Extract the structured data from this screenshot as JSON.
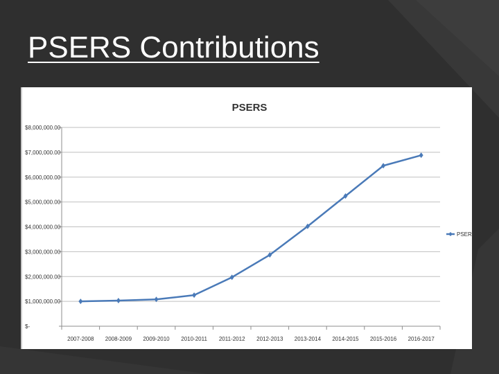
{
  "slide": {
    "title": "PSERS Contributions"
  },
  "colors": {
    "background": "#2f2f2f",
    "series": "#4a7ab8",
    "gridline": "#bfbfbf"
  },
  "chart_data": {
    "type": "line",
    "title": "PSERS",
    "xlabel": "",
    "ylabel": "",
    "categories": [
      "2007-2008",
      "2008-2009",
      "2009-2010",
      "2010-2011",
      "2011-2012",
      "2012-2013",
      "2013-2014",
      "2014-2015",
      "2015-2016",
      "2016-2017"
    ],
    "series": [
      {
        "name": "PSERS",
        "values": [
          1000000,
          1030000,
          1080000,
          1250000,
          1970000,
          2870000,
          4020000,
          5240000,
          6460000,
          6880000
        ],
        "marker": "diamond"
      }
    ],
    "y_ticks": [
      0,
      1000000,
      2000000,
      3000000,
      4000000,
      5000000,
      6000000,
      7000000,
      8000000
    ],
    "y_tick_labels": [
      "$-",
      "$1,000,000.00",
      "$2,000,000.00",
      "$3,000,000.00",
      "$4,000,000.00",
      "$5,000,000.00",
      "$6,000,000.00",
      "$7,000,000.00",
      "$8,000,000.00"
    ],
    "ylim": [
      0,
      8000000
    ],
    "grid": true,
    "legend_position": "right"
  }
}
